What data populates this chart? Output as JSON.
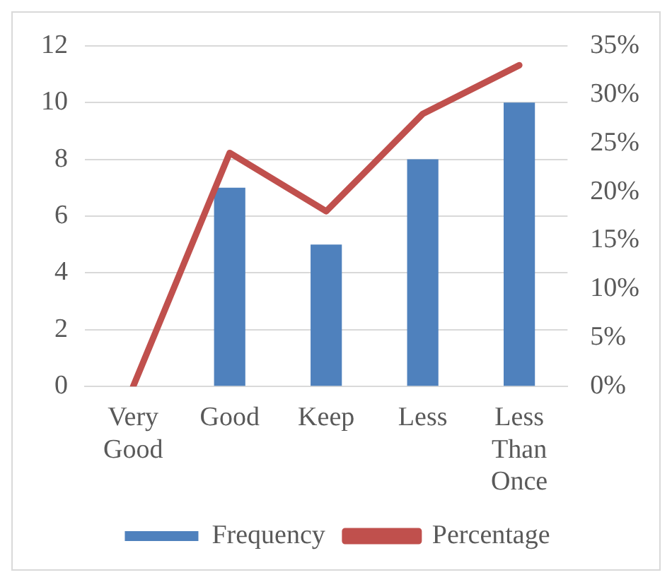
{
  "chart_data": {
    "type": "bar",
    "categories": [
      "Very Good",
      "Good",
      "Keep",
      "Less",
      "Less Than Once"
    ],
    "series": [
      {
        "name": "Frequency",
        "color": "#4f81bd",
        "values": [
          0,
          7,
          5,
          8,
          10
        ]
      },
      {
        "name": "Percentage",
        "type": "line",
        "axis": "y2",
        "color": "#c0504d",
        "values": [
          0,
          24,
          18,
          28,
          33
        ]
      }
    ],
    "ylim": [
      0,
      12
    ],
    "yticks": [
      0,
      2,
      4,
      6,
      8,
      10,
      12
    ],
    "y2lim": [
      0,
      35
    ],
    "y2ticks": [
      {
        "value": 0,
        "label": "0%"
      },
      {
        "value": 5,
        "label": "5%"
      },
      {
        "value": 10,
        "label": "10%"
      },
      {
        "value": 15,
        "label": "15%"
      },
      {
        "value": 20,
        "label": "20%"
      },
      {
        "value": 25,
        "label": "25%"
      },
      {
        "value": 30,
        "label": "30%"
      },
      {
        "value": 35,
        "label": "35%"
      }
    ],
    "grid": "y",
    "legend": "bottom",
    "marker": "none"
  }
}
